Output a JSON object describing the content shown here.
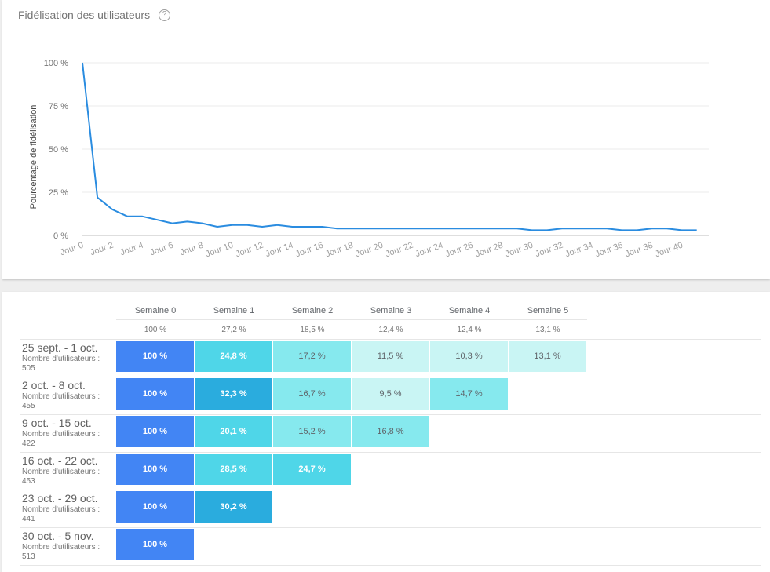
{
  "retention_panel": {
    "title": "Fidélisation des utilisateurs",
    "help_icon": "help-circle-icon"
  },
  "chart_data": {
    "type": "line",
    "ylabel": "Pourcentage de fidélisation",
    "yticks": [
      "100 %",
      "75 %",
      "50 %",
      "25 %",
      "0 %"
    ],
    "ylim": [
      0,
      100
    ],
    "xticks": [
      "Jour 0",
      "Jour 2",
      "Jour 4",
      "Jour 6",
      "Jour 8",
      "Jour 10",
      "Jour 12",
      "Jour 14",
      "Jour 16",
      "Jour 18",
      "Jour 20",
      "Jour 22",
      "Jour 24",
      "Jour 26",
      "Jour 28",
      "Jour 30",
      "Jour 32",
      "Jour 34",
      "Jour 36",
      "Jour 38",
      "Jour 40"
    ],
    "x": [
      0,
      1,
      2,
      3,
      4,
      5,
      6,
      7,
      8,
      9,
      10,
      11,
      12,
      13,
      14,
      15,
      16,
      17,
      18,
      19,
      20,
      21,
      22,
      23,
      24,
      25,
      26,
      27,
      28,
      29,
      30,
      31,
      32,
      33,
      34,
      35,
      36,
      37,
      38,
      39,
      40,
      41
    ],
    "values": [
      100,
      22,
      15,
      11,
      11,
      9,
      7,
      8,
      7,
      5,
      6,
      6,
      5,
      6,
      5,
      5,
      5,
      4,
      4,
      4,
      4,
      4,
      4,
      4,
      4,
      4,
      4,
      4,
      4,
      4,
      3,
      3,
      4,
      4,
      4,
      4,
      3,
      3,
      4,
      4,
      3,
      3
    ],
    "grid": true,
    "color": "#2a8ce0"
  },
  "cohort": {
    "columns": [
      "Semaine 0",
      "Semaine 1",
      "Semaine 2",
      "Semaine 3",
      "Semaine 4",
      "Semaine 5"
    ],
    "totals": [
      "100 %",
      "27,2 %",
      "18,5 %",
      "12,4 %",
      "12,4 %",
      "13,1 %"
    ],
    "rows": [
      {
        "date": "25 sept. - 1 oct.",
        "users_label": "Nombre d'utilisateurs :",
        "users": "505",
        "values": [
          "100 %",
          "24,8 %",
          "17,2 %",
          "11,5 %",
          "10,3 %",
          "13,1 %"
        ]
      },
      {
        "date": "2 oct. - 8 oct.",
        "users_label": "Nombre d'utilisateurs :",
        "users": "455",
        "values": [
          "100 %",
          "32,3 %",
          "16,7 %",
          "9,5 %",
          "14,7 %"
        ]
      },
      {
        "date": "9 oct. - 15 oct.",
        "users_label": "Nombre d'utilisateurs :",
        "users": "422",
        "values": [
          "100 %",
          "20,1 %",
          "15,2 %",
          "16,8 %"
        ]
      },
      {
        "date": "16 oct. - 22 oct.",
        "users_label": "Nombre d'utilisateurs :",
        "users": "453",
        "values": [
          "100 %",
          "28,5 %",
          "24,7 %"
        ]
      },
      {
        "date": "23 oct. - 29 oct.",
        "users_label": "Nombre d'utilisateurs :",
        "users": "441",
        "values": [
          "100 %",
          "30,2 %"
        ]
      },
      {
        "date": "30 oct. - 5 nov.",
        "users_label": "Nombre d'utilisateurs :",
        "users": "513",
        "values": [
          "100 %"
        ]
      }
    ],
    "colors": {
      "week0": "#4285f4",
      "dark": "#2aacde",
      "strong": "#4fd6e8",
      "medium": "#86e9ee",
      "light": "#c9f5f4",
      "text_light": "#ffffff",
      "text_dark": "#5f6368"
    }
  }
}
